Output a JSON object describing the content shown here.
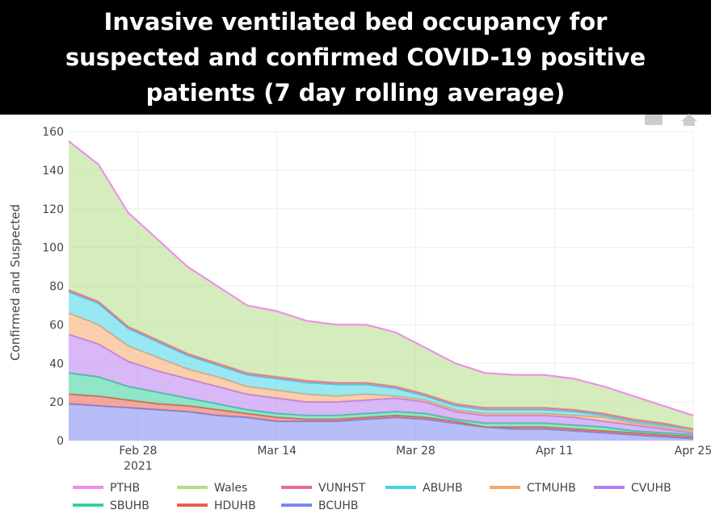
{
  "chart_data": {
    "type": "stacked_area",
    "title": "Invasive ventilated bed occupancy for suspected and confirmed COVID-19 positive patients (7 day rolling average)",
    "y_label": "Confirmed and Suspected",
    "x": [
      "2021-02-21",
      "2021-02-24",
      "2021-02-27",
      "2021-03-02",
      "2021-03-05",
      "2021-03-08",
      "2021-03-11",
      "2021-03-14",
      "2021-03-17",
      "2021-03-20",
      "2021-03-23",
      "2021-03-26",
      "2021-03-29",
      "2021-04-01",
      "2021-04-04",
      "2021-04-07",
      "2021-04-10",
      "2021-04-13",
      "2021-04-16",
      "2021-04-19",
      "2021-04-22",
      "2021-04-25"
    ],
    "xlim": [
      "2021-02-21",
      "2021-04-25"
    ],
    "xticks": [
      {
        "value": "2021-02-28",
        "label": "Feb 28\n2021"
      },
      {
        "value": "2021-03-14",
        "label": "Mar 14"
      },
      {
        "value": "2021-03-28",
        "label": "Mar 28"
      },
      {
        "value": "2021-04-11",
        "label": "Apr 11"
      },
      {
        "value": "2021-04-25",
        "label": "Apr 25"
      }
    ],
    "ylim": [
      0,
      160
    ],
    "yticks": [
      0,
      20,
      40,
      60,
      80,
      100,
      120,
      140,
      160
    ],
    "grid": true,
    "series": [
      {
        "name": "BCUHB",
        "color": "#7a86f0",
        "values": [
          19,
          18,
          17,
          16,
          15,
          13,
          12,
          10,
          10,
          10,
          11,
          12,
          11,
          9,
          7,
          6,
          6,
          5,
          4,
          3,
          2,
          1
        ]
      },
      {
        "name": "HDUHB",
        "color": "#e8604c",
        "values": [
          5,
          5,
          4,
          3,
          3,
          3,
          2,
          2,
          1,
          1,
          1,
          1,
          1,
          1,
          0,
          1,
          1,
          1,
          1,
          1,
          1,
          1
        ]
      },
      {
        "name": "SBUHB",
        "color": "#36cf9c",
        "values": [
          11,
          10,
          7,
          6,
          4,
          3,
          2,
          2,
          2,
          2,
          2,
          2,
          2,
          1,
          2,
          2,
          2,
          2,
          2,
          1,
          1,
          1
        ]
      },
      {
        "name": "CVUHB",
        "color": "#b87ef0",
        "values": [
          20,
          17,
          13,
          11,
          10,
          9,
          8,
          8,
          7,
          7,
          7,
          7,
          6,
          4,
          4,
          4,
          4,
          4,
          3,
          3,
          2,
          1
        ]
      },
      {
        "name": "CTMUHB",
        "color": "#f8a86a",
        "values": [
          11,
          10,
          8,
          7,
          5,
          5,
          4,
          4,
          4,
          3,
          3,
          1,
          1,
          1,
          1,
          1,
          1,
          1,
          2,
          1,
          1,
          1
        ]
      },
      {
        "name": "ABUHB",
        "color": "#45d4ea",
        "values": [
          11,
          11,
          9,
          8,
          7,
          6,
          6,
          6,
          6,
          6,
          5,
          4,
          2,
          2,
          2,
          2,
          2,
          2,
          1,
          1,
          1,
          1
        ]
      },
      {
        "name": "VUNHST",
        "color": "#e86a8a",
        "values": [
          1,
          1,
          1,
          1,
          1,
          1,
          1,
          1,
          1,
          1,
          1,
          1,
          1,
          1,
          1,
          1,
          1,
          1,
          1,
          1,
          1,
          0
        ]
      },
      {
        "name": "Wales",
        "color": "#b2dd85",
        "values": [
          77,
          71,
          59,
          52,
          45,
          40,
          35,
          34,
          31,
          30,
          30,
          28,
          24,
          21,
          18,
          17,
          17,
          16,
          14,
          12,
          9,
          7
        ]
      },
      {
        "name": "PTHB",
        "color": "#f08cf0",
        "values": [
          0,
          0,
          0,
          0,
          0,
          0,
          0,
          0,
          0,
          0,
          0,
          0,
          0,
          0,
          0,
          0,
          0,
          0,
          0,
          0,
          0,
          0
        ]
      }
    ]
  }
}
